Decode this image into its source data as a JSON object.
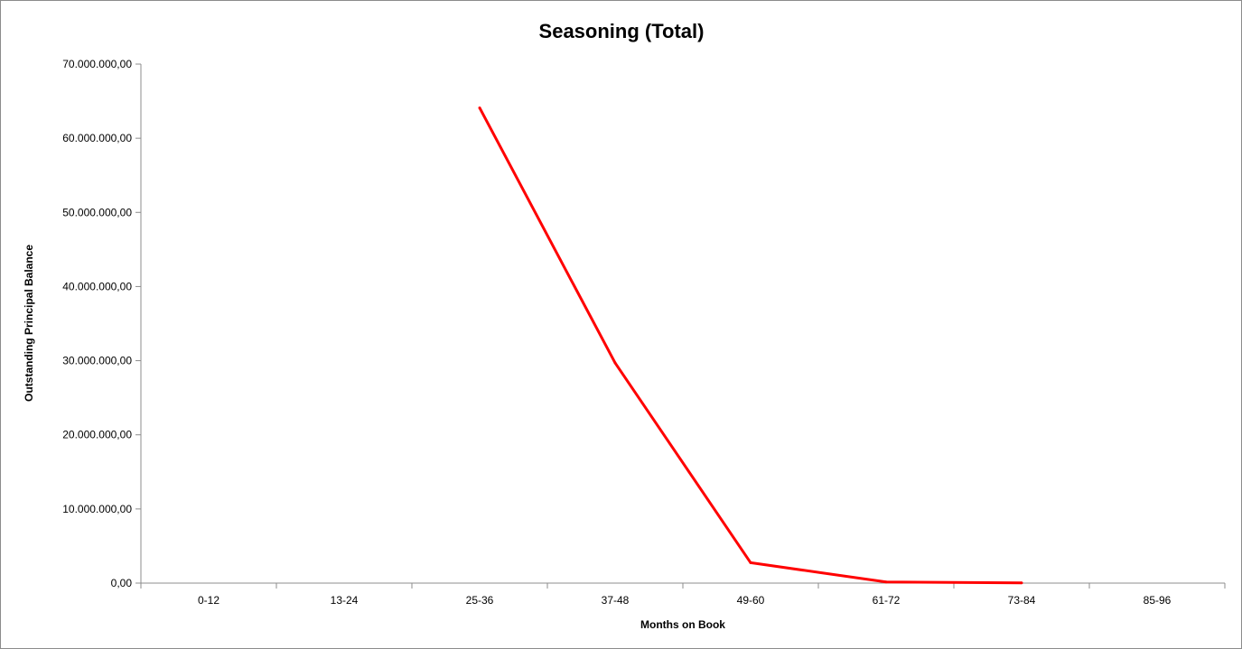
{
  "chart_data": {
    "type": "line",
    "title": "Seasoning (Total)",
    "xlabel": "Months on Book",
    "ylabel": "Outstanding Principal Balance",
    "categories": [
      "0-12",
      "13-24",
      "25-36",
      "37-48",
      "49-60",
      "61-72",
      "73-84",
      "85-96"
    ],
    "series": [
      {
        "values": [
          null,
          null,
          64100000,
          29700000,
          2750000,
          150000,
          30000,
          null
        ],
        "color": "#ff0000"
      }
    ],
    "ylim": [
      0,
      70000000
    ],
    "yticks": [
      0,
      10000000,
      20000000,
      30000000,
      40000000,
      50000000,
      60000000,
      70000000
    ],
    "ytick_labels": [
      "0,00",
      "10.000.000,00",
      "20.000.000,00",
      "30.000.000,00",
      "40.000.000,00",
      "50.000.000,00",
      "60.000.000,00",
      "70.000.000,00"
    ],
    "grid": false,
    "legend": "none"
  }
}
